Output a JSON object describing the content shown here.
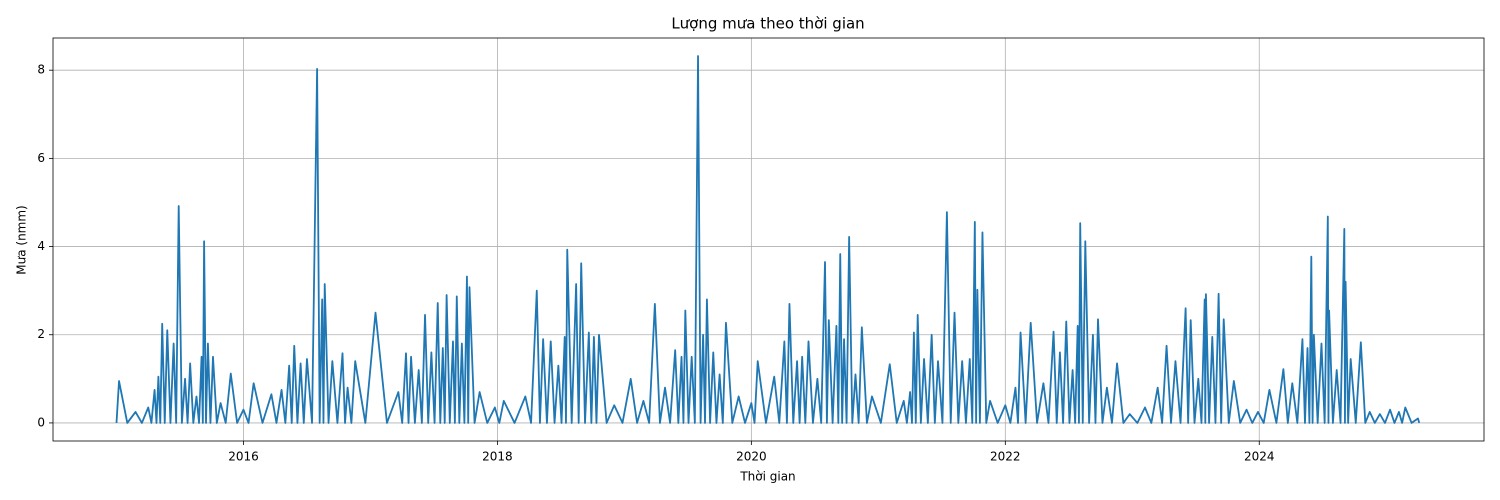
{
  "chart_data": {
    "type": "line",
    "title": "Lượng mưa theo thời gian",
    "x_label": "Thời gian",
    "y_label": "Mưa (nmm)",
    "xlim": [
      2014.5,
      2025.77
    ],
    "ylim": [
      -0.41,
      8.73
    ],
    "xticks": [
      2016,
      2018,
      2020,
      2022,
      2024
    ],
    "yticks": [
      0,
      2,
      4,
      6,
      8
    ],
    "grid": true,
    "x": [
      2015.0,
      2015.02,
      2015.085,
      2015.15,
      2015.2,
      2015.25,
      2015.275,
      2015.3,
      2015.315,
      2015.33,
      2015.345,
      2015.36,
      2015.38,
      2015.4,
      2015.425,
      2015.45,
      2015.47,
      2015.49,
      2015.515,
      2015.54,
      2015.56,
      2015.58,
      2015.605,
      2015.63,
      2015.65,
      2015.67,
      2015.68,
      2015.69,
      2015.705,
      2015.72,
      2015.74,
      2015.76,
      2015.79,
      2015.82,
      2015.86,
      2015.9,
      2015.95,
      2016.0,
      2016.04,
      2016.08,
      2016.15,
      2016.22,
      2016.26,
      2016.3,
      2016.33,
      2016.36,
      2016.38,
      2016.4,
      2016.425,
      2016.45,
      2016.475,
      2016.5,
      2016.54,
      2016.58,
      2016.6,
      2016.62,
      2016.63,
      2016.64,
      2016.67,
      2016.7,
      2016.74,
      2016.78,
      2016.8,
      2016.82,
      2016.85,
      2016.88,
      2016.96,
      2017.04,
      2017.13,
      2017.22,
      2017.25,
      2017.28,
      2017.3,
      2017.32,
      2017.35,
      2017.38,
      2017.405,
      2017.43,
      2017.455,
      2017.48,
      2017.505,
      2017.53,
      2017.55,
      2017.57,
      2017.585,
      2017.6,
      2017.625,
      2017.65,
      2017.665,
      2017.68,
      2017.7,
      2017.72,
      2017.74,
      2017.76,
      2017.77,
      2017.78,
      2017.82,
      2017.86,
      2017.92,
      2017.98,
      2018.015,
      2018.05,
      2018.135,
      2018.22,
      2018.265,
      2018.31,
      2018.335,
      2018.36,
      2018.39,
      2018.42,
      2018.45,
      2018.48,
      2018.505,
      2018.53,
      2018.54,
      2018.55,
      2018.585,
      2018.62,
      2018.64,
      2018.66,
      2018.69,
      2018.72,
      2018.74,
      2018.76,
      2018.78,
      2018.8,
      2018.86,
      2018.92,
      2018.985,
      2019.05,
      2019.1,
      2019.15,
      2019.195,
      2019.24,
      2019.28,
      2019.32,
      2019.36,
      2019.4,
      2019.425,
      2019.45,
      2019.465,
      2019.48,
      2019.505,
      2019.53,
      2019.555,
      2019.58,
      2019.6,
      2019.62,
      2019.635,
      2019.65,
      2019.675,
      2019.7,
      2019.725,
      2019.75,
      2019.775,
      2019.8,
      2019.85,
      2019.9,
      2019.95,
      2020.0,
      2020.025,
      2020.05,
      2020.115,
      2020.18,
      2020.22,
      2020.26,
      2020.28,
      2020.3,
      2020.33,
      2020.36,
      2020.38,
      2020.4,
      2020.425,
      2020.45,
      2020.485,
      2020.52,
      2020.55,
      2020.58,
      2020.595,
      2020.61,
      2020.64,
      2020.67,
      2020.685,
      2020.7,
      2020.715,
      2020.73,
      2020.75,
      2020.77,
      2020.795,
      2020.82,
      2020.845,
      2020.87,
      2020.91,
      2020.95,
      2021.02,
      2021.09,
      2021.145,
      2021.2,
      2021.225,
      2021.25,
      2021.265,
      2021.28,
      2021.295,
      2021.31,
      2021.335,
      2021.36,
      2021.39,
      2021.42,
      2021.445,
      2021.47,
      2021.505,
      2021.54,
      2021.57,
      2021.6,
      2021.63,
      2021.66,
      2021.69,
      2021.72,
      2021.74,
      2021.76,
      2021.77,
      2021.78,
      2021.8,
      2021.82,
      2021.85,
      2021.88,
      2021.94,
      2022.0,
      2022.04,
      2022.08,
      2022.1,
      2022.12,
      2022.16,
      2022.2,
      2022.25,
      2022.3,
      2022.34,
      2022.38,
      2022.405,
      2022.43,
      2022.455,
      2022.48,
      2022.505,
      2022.53,
      2022.55,
      2022.57,
      2022.58,
      2022.59,
      2022.61,
      2022.63,
      2022.66,
      2022.69,
      2022.71,
      2022.73,
      2022.765,
      2022.8,
      2022.84,
      2022.88,
      2022.93,
      2022.98,
      2023.04,
      2023.1,
      2023.15,
      2023.2,
      2023.235,
      2023.27,
      2023.305,
      2023.34,
      2023.38,
      2023.42,
      2023.44,
      2023.46,
      2023.49,
      2023.52,
      2023.545,
      2023.57,
      2023.575,
      2023.58,
      2023.605,
      2023.63,
      2023.655,
      2023.68,
      2023.7,
      2023.72,
      2023.76,
      2023.8,
      2023.85,
      2023.9,
      2023.945,
      2023.99,
      2024.035,
      2024.08,
      2024.135,
      2024.19,
      2024.225,
      2024.26,
      2024.3,
      2024.34,
      2024.36,
      2024.38,
      2024.395,
      2024.41,
      2024.42,
      2024.43,
      2024.46,
      2024.49,
      2024.515,
      2024.54,
      2024.545,
      2024.55,
      2024.58,
      2024.61,
      2024.64,
      2024.67,
      2024.675,
      2024.68,
      2024.7,
      2024.72,
      2024.76,
      2024.8,
      2024.835,
      2024.87,
      2024.91,
      2024.95,
      2024.99,
      2025.03,
      2025.065,
      2025.1,
      2025.125,
      2025.15,
      2025.2,
      2025.25,
      2025.26
    ],
    "series": [
      {
        "color": "#1f77b4",
        "values": [
          0,
          0.95,
          0,
          0.25,
          0,
          0.35,
          0,
          0.75,
          0,
          1.05,
          0,
          2.25,
          0,
          2.1,
          0,
          1.8,
          0,
          4.92,
          0,
          1.0,
          0,
          1.35,
          0,
          0.6,
          0,
          1.5,
          0,
          4.12,
          0,
          1.8,
          0,
          1.5,
          0,
          0.45,
          0,
          1.12,
          0,
          0.3,
          0,
          0.9,
          0,
          0.65,
          0,
          0.75,
          0,
          1.3,
          0,
          1.75,
          0,
          1.35,
          0,
          1.45,
          0,
          8.03,
          0,
          2.8,
          0,
          3.15,
          0,
          1.4,
          0,
          1.58,
          0,
          0.8,
          0,
          1.4,
          0,
          2.5,
          0,
          0.7,
          0,
          1.58,
          0,
          1.5,
          0,
          1.2,
          0,
          2.45,
          0,
          1.6,
          0,
          2.72,
          0,
          1.7,
          0,
          2.9,
          0,
          1.85,
          0,
          2.87,
          0,
          1.8,
          0,
          3.32,
          0,
          3.08,
          0,
          0.7,
          0,
          0.35,
          0,
          0.5,
          0,
          0.6,
          0,
          3.0,
          0,
          1.9,
          0,
          1.85,
          0,
          1.3,
          0,
          1.95,
          0,
          3.93,
          0,
          3.15,
          0,
          3.62,
          0,
          2.05,
          0,
          1.95,
          0,
          2.0,
          0,
          0.4,
          0,
          1.0,
          0,
          0.5,
          0,
          2.7,
          0,
          0.8,
          0,
          1.65,
          0,
          1.5,
          0,
          2.55,
          0,
          1.5,
          0,
          8.32,
          0,
          2.0,
          0,
          2.8,
          0,
          1.6,
          0,
          1.1,
          0,
          2.27,
          0,
          0.6,
          0,
          0.45,
          0,
          1.4,
          0,
          1.05,
          0,
          1.85,
          0,
          2.7,
          0,
          1.4,
          0,
          1.5,
          0,
          1.85,
          0,
          1.0,
          0,
          3.65,
          0,
          2.33,
          0,
          2.2,
          0,
          3.83,
          0,
          1.9,
          0,
          4.22,
          0,
          1.1,
          0,
          2.17,
          0,
          0.6,
          0,
          1.33,
          0,
          0.5,
          0,
          0.7,
          0,
          2.05,
          0,
          2.45,
          0,
          1.45,
          0,
          2.0,
          0,
          1.4,
          0,
          4.78,
          0,
          2.5,
          0,
          1.4,
          0,
          1.45,
          0,
          4.56,
          0,
          3.02,
          0,
          4.32,
          0,
          0.5,
          0,
          0.4,
          0,
          0.8,
          0,
          2.05,
          0,
          2.27,
          0,
          0.9,
          0,
          2.07,
          0,
          1.6,
          0,
          2.3,
          0,
          1.2,
          0,
          2.2,
          0,
          4.53,
          0,
          4.12,
          0,
          2.0,
          0,
          2.35,
          0,
          0.8,
          0,
          1.35,
          0,
          0.2,
          0,
          0.35,
          0,
          0.8,
          0,
          1.75,
          0,
          1.4,
          0,
          2.6,
          0,
          2.33,
          0,
          1.0,
          0,
          2.8,
          0,
          2.92,
          0,
          1.95,
          0,
          2.93,
          0,
          2.35,
          0,
          0.95,
          0,
          0.3,
          0,
          0.25,
          0,
          0.75,
          0,
          1.22,
          0,
          0.9,
          0,
          1.9,
          0,
          1.7,
          0,
          3.77,
          0,
          2.0,
          0,
          1.8,
          0,
          4.68,
          0,
          2.55,
          0,
          1.2,
          0,
          4.4,
          0,
          3.2,
          0,
          1.45,
          0,
          1.83,
          0,
          0.25,
          0,
          0.2,
          0,
          0.3,
          0,
          0.25,
          0,
          0.35,
          0,
          0.1,
          0
        ]
      }
    ]
  }
}
